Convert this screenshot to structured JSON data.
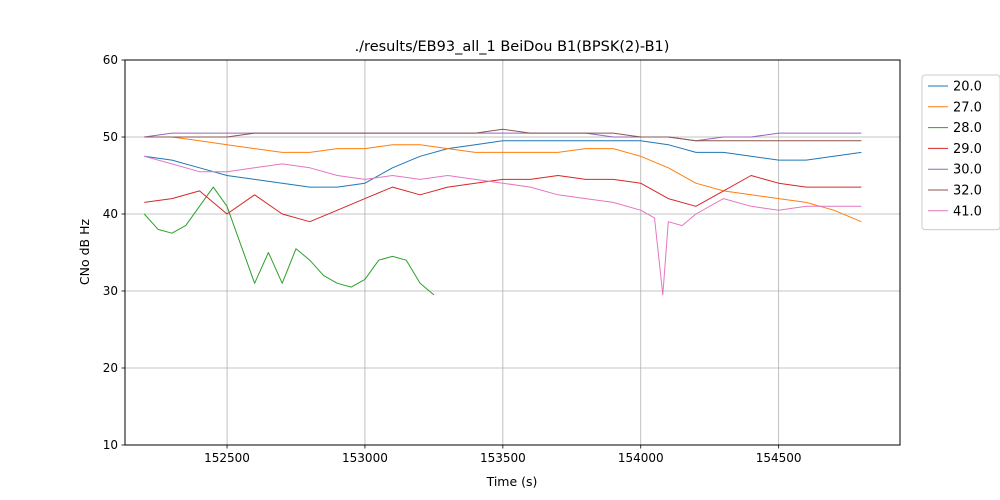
{
  "chart_data": {
    "type": "line",
    "title": "./results/EB93_all_1 BeiDou B1(BPSK(2)-B1)",
    "xlabel": "Time (s)",
    "ylabel": "CNo dB Hz",
    "xlim": [
      152130,
      154940
    ],
    "ylim": [
      10,
      60
    ],
    "xticks": [
      152500,
      153000,
      153500,
      154000,
      154500
    ],
    "yticks": [
      10,
      20,
      30,
      40,
      50,
      60
    ],
    "grid": true,
    "legend_position": "upper-right-outside",
    "series": [
      {
        "name": "20.0",
        "color": "#1f77b4",
        "x": [
          152200,
          152300,
          152400,
          152500,
          152600,
          152700,
          152800,
          152900,
          153000,
          153100,
          153200,
          153300,
          153400,
          153500,
          153600,
          153700,
          153800,
          153900,
          154000,
          154100,
          154200,
          154300,
          154400,
          154500,
          154600,
          154700,
          154800
        ],
        "y": [
          47.5,
          47,
          46,
          45,
          44.5,
          44,
          43.5,
          43.5,
          44,
          46,
          47.5,
          48.5,
          49,
          49.5,
          49.5,
          49.5,
          49.5,
          49.5,
          49.5,
          49,
          48,
          48,
          47.5,
          47,
          47,
          47.5,
          48
        ]
      },
      {
        "name": "27.0",
        "color": "#ff7f0e",
        "x": [
          152200,
          152300,
          152400,
          152500,
          152600,
          152700,
          152800,
          152900,
          153000,
          153100,
          153200,
          153300,
          153400,
          153500,
          153600,
          153700,
          153800,
          153900,
          154000,
          154100,
          154200,
          154300,
          154400,
          154500,
          154600,
          154700,
          154800
        ],
        "y": [
          50,
          50,
          49.5,
          49,
          48.5,
          48,
          48,
          48.5,
          48.5,
          49,
          49,
          48.5,
          48,
          48,
          48,
          48,
          48.5,
          48.5,
          47.5,
          46,
          44,
          43,
          42.5,
          42,
          41.5,
          40.5,
          39
        ]
      },
      {
        "name": "28.0",
        "color": "#2ca02c",
        "x": [
          152200,
          152250,
          152300,
          152350,
          152400,
          152450,
          152500,
          152550,
          152600,
          152650,
          152700,
          152750,
          152800,
          152850,
          152900,
          152950,
          153000,
          153050,
          153100,
          153150,
          153200,
          153250
        ],
        "y": [
          40,
          38,
          37.5,
          38.5,
          41,
          43.5,
          41,
          36,
          31,
          35,
          31,
          35.5,
          34,
          32,
          31,
          30.5,
          31.5,
          34,
          34.5,
          34,
          31,
          29.5
        ]
      },
      {
        "name": "29.0",
        "color": "#d62728",
        "x": [
          152200,
          152300,
          152400,
          152500,
          152600,
          152700,
          152800,
          152900,
          153000,
          153100,
          153200,
          153300,
          153400,
          153500,
          153600,
          153700,
          153800,
          153900,
          154000,
          154100,
          154200,
          154300,
          154400,
          154500,
          154600,
          154700,
          154800
        ],
        "y": [
          41.5,
          42,
          43,
          40,
          42.5,
          40,
          39,
          40.5,
          42,
          43.5,
          42.5,
          43.5,
          44,
          44.5,
          44.5,
          45,
          44.5,
          44.5,
          44,
          42,
          41,
          43,
          45,
          44,
          43.5,
          43.5,
          43.5
        ]
      },
      {
        "name": "30.0",
        "color": "#9467bd",
        "x": [
          152200,
          152300,
          152400,
          152500,
          152600,
          152700,
          152800,
          152900,
          153000,
          153100,
          153200,
          153300,
          153400,
          153500,
          153600,
          153700,
          153800,
          153900,
          154000,
          154100,
          154200,
          154300,
          154400,
          154500,
          154600,
          154700,
          154800
        ],
        "y": [
          50,
          50.5,
          50.5,
          50.5,
          50.5,
          50.5,
          50.5,
          50.5,
          50.5,
          50.5,
          50.5,
          50.5,
          50.5,
          50.5,
          50.5,
          50.5,
          50.5,
          50,
          50,
          50,
          49.5,
          50,
          50,
          50.5,
          50.5,
          50.5,
          50.5
        ]
      },
      {
        "name": "32.0",
        "color": "#8c564b",
        "x": [
          152200,
          152300,
          152400,
          152500,
          152600,
          152700,
          152800,
          152900,
          153000,
          153100,
          153200,
          153300,
          153400,
          153500,
          153600,
          153700,
          153800,
          153900,
          154000,
          154100,
          154200,
          154300,
          154400,
          154500,
          154600,
          154700,
          154800
        ],
        "y": [
          50,
          50,
          50,
          50,
          50.5,
          50.5,
          50.5,
          50.5,
          50.5,
          50.5,
          50.5,
          50.5,
          50.5,
          51,
          50.5,
          50.5,
          50.5,
          50.5,
          50,
          50,
          49.5,
          49.5,
          49.5,
          49.5,
          49.5,
          49.5,
          49.5
        ]
      },
      {
        "name": "41.0",
        "color": "#e377c2",
        "x": [
          152200,
          152300,
          152400,
          152500,
          152600,
          152700,
          152800,
          152900,
          153000,
          153100,
          153200,
          153300,
          153400,
          153500,
          153600,
          153700,
          153800,
          153900,
          154000,
          154050,
          154080,
          154100,
          154150,
          154200,
          154300,
          154400,
          154500,
          154600,
          154700,
          154800
        ],
        "y": [
          47.5,
          46.5,
          45.5,
          45.5,
          46,
          46.5,
          46,
          45,
          44.5,
          45,
          44.5,
          45,
          44.5,
          44,
          43.5,
          42.5,
          42,
          41.5,
          40.5,
          39.5,
          29.5,
          39,
          38.5,
          40,
          42,
          41,
          40.5,
          41,
          41,
          41
        ]
      }
    ]
  }
}
